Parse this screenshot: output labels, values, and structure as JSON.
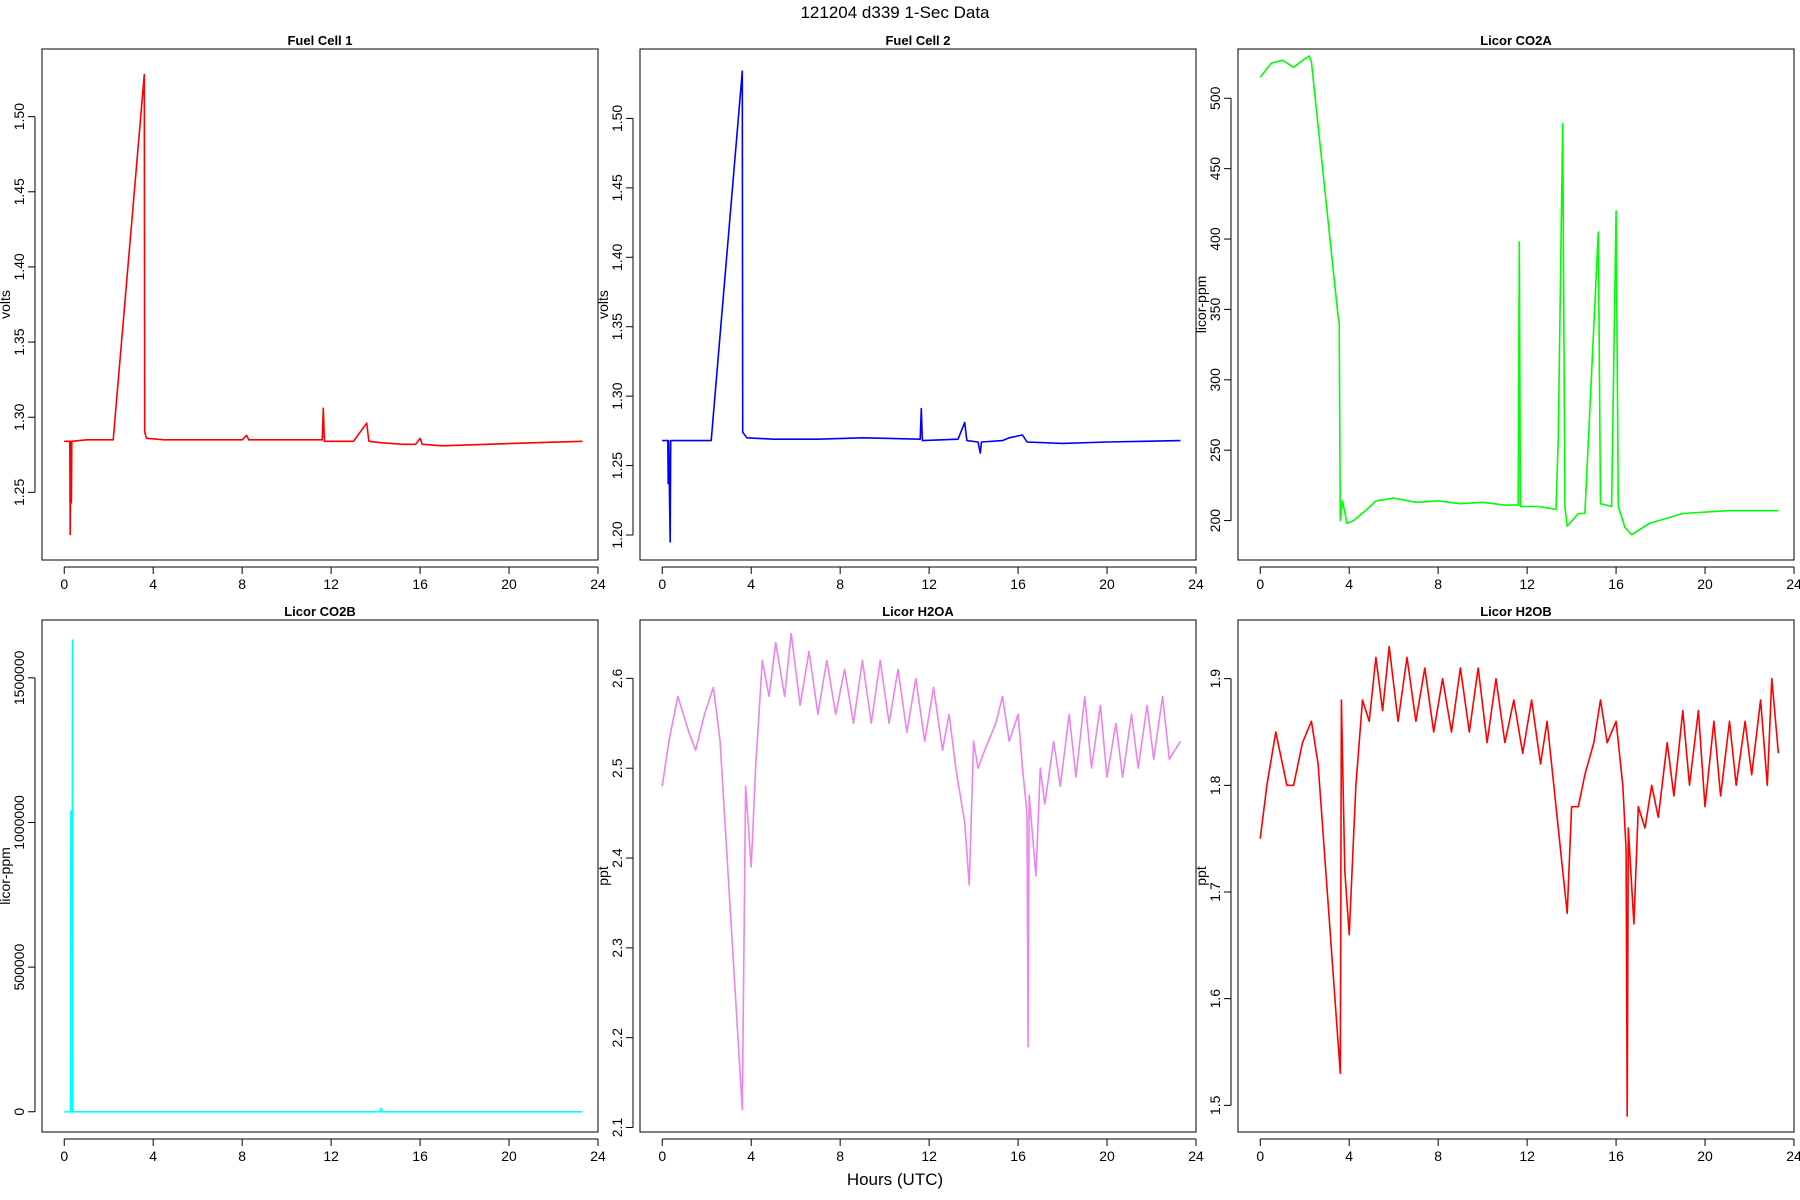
{
  "figure": {
    "title": "121204   d339   1-Sec Data",
    "xlabel": "Hours (UTC)"
  },
  "chart_data": [
    {
      "type": "line",
      "title": "Fuel Cell 1",
      "ylabel": "volts",
      "color": "#ff0000",
      "xlim": [
        -1,
        24
      ],
      "ylim": [
        1.205,
        1.545
      ],
      "xticks": [
        0,
        4,
        8,
        12,
        16,
        20,
        24
      ],
      "yticks": [
        1.25,
        1.3,
        1.35,
        1.4,
        1.45,
        1.5
      ],
      "ytick_labels": [
        "1.25",
        "1.30",
        "1.35",
        "1.40",
        "1.45",
        "1.50"
      ],
      "grid": false,
      "points": [
        [
          0,
          1.284
        ],
        [
          0.25,
          1.284
        ],
        [
          0.27,
          1.222
        ],
        [
          0.29,
          1.284
        ],
        [
          0.32,
          1.243
        ],
        [
          0.34,
          1.284
        ],
        [
          1.0,
          1.285
        ],
        [
          2.2,
          1.285
        ],
        [
          3.6,
          1.528
        ],
        [
          3.62,
          1.29
        ],
        [
          3.7,
          1.286
        ],
        [
          4.5,
          1.285
        ],
        [
          6,
          1.285
        ],
        [
          8,
          1.285
        ],
        [
          8.2,
          1.288
        ],
        [
          8.3,
          1.285
        ],
        [
          10,
          1.285
        ],
        [
          11.6,
          1.285
        ],
        [
          11.65,
          1.306
        ],
        [
          11.7,
          1.284
        ],
        [
          13.0,
          1.284
        ],
        [
          13.6,
          1.296
        ],
        [
          13.7,
          1.284
        ],
        [
          14.3,
          1.283
        ],
        [
          15.2,
          1.282
        ],
        [
          15.8,
          1.282
        ],
        [
          16.0,
          1.286
        ],
        [
          16.1,
          1.282
        ],
        [
          17.0,
          1.281
        ],
        [
          19,
          1.282
        ],
        [
          21,
          1.283
        ],
        [
          23.3,
          1.284
        ]
      ]
    },
    {
      "type": "line",
      "title": "Fuel Cell 2",
      "ylabel": "volts",
      "color": "#0000ff",
      "xlim": [
        -1,
        24
      ],
      "ylim": [
        1.182,
        1.55
      ],
      "xticks": [
        0,
        4,
        8,
        12,
        16,
        20,
        24
      ],
      "yticks": [
        1.2,
        1.25,
        1.3,
        1.35,
        1.4,
        1.45,
        1.5
      ],
      "ytick_labels": [
        "1.20",
        "1.25",
        "1.30",
        "1.35",
        "1.40",
        "1.45",
        "1.50"
      ],
      "grid": false,
      "points": [
        [
          0,
          1.268
        ],
        [
          0.25,
          1.268
        ],
        [
          0.27,
          1.237
        ],
        [
          0.29,
          1.268
        ],
        [
          0.36,
          1.195
        ],
        [
          0.38,
          1.268
        ],
        [
          1.0,
          1.268
        ],
        [
          2.2,
          1.268
        ],
        [
          3.6,
          1.534
        ],
        [
          3.62,
          1.274
        ],
        [
          3.8,
          1.27
        ],
        [
          5,
          1.269
        ],
        [
          7,
          1.269
        ],
        [
          9,
          1.27
        ],
        [
          11.6,
          1.269
        ],
        [
          11.65,
          1.291
        ],
        [
          11.7,
          1.268
        ],
        [
          13.3,
          1.269
        ],
        [
          13.6,
          1.281
        ],
        [
          13.7,
          1.268
        ],
        [
          14.2,
          1.267
        ],
        [
          14.3,
          1.259
        ],
        [
          14.35,
          1.267
        ],
        [
          15.3,
          1.268
        ],
        [
          15.6,
          1.27
        ],
        [
          16.2,
          1.272
        ],
        [
          16.4,
          1.267
        ],
        [
          18,
          1.266
        ],
        [
          20,
          1.267
        ],
        [
          23.3,
          1.268
        ]
      ]
    },
    {
      "type": "line",
      "title": "Licor CO2A",
      "ylabel": "licor-ppm",
      "color": "#00ff00",
      "xlim": [
        -1,
        24
      ],
      "ylim": [
        172,
        535
      ],
      "xticks": [
        0,
        4,
        8,
        12,
        16,
        20,
        24
      ],
      "yticks": [
        200,
        250,
        300,
        350,
        400,
        450,
        500
      ],
      "ytick_labels": [
        "200",
        "250",
        "300",
        "350",
        "400",
        "450",
        "500"
      ],
      "grid": false,
      "points": [
        [
          0,
          515
        ],
        [
          0.5,
          525
        ],
        [
          1.0,
          527
        ],
        [
          1.5,
          522
        ],
        [
          2.0,
          528
        ],
        [
          2.2,
          530
        ],
        [
          2.3,
          526
        ],
        [
          3.5,
          345
        ],
        [
          3.55,
          340
        ],
        [
          3.6,
          200
        ],
        [
          3.7,
          214
        ],
        [
          3.9,
          198
        ],
        [
          4.2,
          200
        ],
        [
          4.8,
          208
        ],
        [
          5.2,
          214
        ],
        [
          6,
          216
        ],
        [
          7,
          213
        ],
        [
          8,
          214
        ],
        [
          9,
          212
        ],
        [
          10,
          213
        ],
        [
          11,
          211
        ],
        [
          11.6,
          211
        ],
        [
          11.65,
          398
        ],
        [
          11.7,
          210
        ],
        [
          12.5,
          210
        ],
        [
          13.3,
          208
        ],
        [
          13.4,
          260
        ],
        [
          13.6,
          482
        ],
        [
          13.7,
          210
        ],
        [
          13.8,
          196
        ],
        [
          14.3,
          205
        ],
        [
          14.6,
          205
        ],
        [
          15.2,
          405
        ],
        [
          15.3,
          212
        ],
        [
          15.8,
          210
        ],
        [
          16.0,
          420
        ],
        [
          16.1,
          210
        ],
        [
          16.4,
          195
        ],
        [
          16.7,
          190
        ],
        [
          17.5,
          198
        ],
        [
          19,
          205
        ],
        [
          21,
          207
        ],
        [
          23.3,
          207
        ]
      ]
    },
    {
      "type": "line",
      "title": "Licor CO2B",
      "ylabel": "licor-ppm",
      "color": "#00ffff",
      "xlim": [
        -1,
        24
      ],
      "ylim": [
        -70000,
        1700000
      ],
      "xticks": [
        0,
        4,
        8,
        12,
        16,
        20,
        24
      ],
      "yticks": [
        0,
        500000,
        1000000,
        1500000
      ],
      "ytick_labels": [
        "0",
        "500000",
        "1000000",
        "1500000"
      ],
      "grid": false,
      "points": [
        [
          0,
          0
        ],
        [
          0.28,
          0
        ],
        [
          0.3,
          1040000
        ],
        [
          0.32,
          0
        ],
        [
          0.35,
          0
        ],
        [
          0.37,
          1630000
        ],
        [
          0.39,
          0
        ],
        [
          14.2,
          0
        ],
        [
          14.25,
          12000
        ],
        [
          14.3,
          0
        ],
        [
          23.3,
          0
        ]
      ]
    },
    {
      "type": "line",
      "title": "Licor H2OA",
      "ylabel": "ppt",
      "color": "#ee82ee",
      "xlim": [
        -1,
        24
      ],
      "ylim": [
        2.095,
        2.665
      ],
      "xticks": [
        0,
        4,
        8,
        12,
        16,
        20,
        24
      ],
      "yticks": [
        2.1,
        2.2,
        2.3,
        2.4,
        2.5,
        2.6
      ],
      "ytick_labels": [
        "2.1",
        "2.2",
        "2.3",
        "2.4",
        "2.5",
        "2.6"
      ],
      "grid": false,
      "points": [
        [
          0,
          2.48
        ],
        [
          0.3,
          2.53
        ],
        [
          0.7,
          2.58
        ],
        [
          1.2,
          2.54
        ],
        [
          1.5,
          2.52
        ],
        [
          1.9,
          2.56
        ],
        [
          2.3,
          2.59
        ],
        [
          2.6,
          2.53
        ],
        [
          3.6,
          2.12
        ],
        [
          3.75,
          2.48
        ],
        [
          4.0,
          2.39
        ],
        [
          4.2,
          2.5
        ],
        [
          4.5,
          2.62
        ],
        [
          4.8,
          2.58
        ],
        [
          5.1,
          2.64
        ],
        [
          5.5,
          2.58
        ],
        [
          5.8,
          2.65
        ],
        [
          6.2,
          2.57
        ],
        [
          6.6,
          2.63
        ],
        [
          7.0,
          2.56
        ],
        [
          7.4,
          2.62
        ],
        [
          7.8,
          2.56
        ],
        [
          8.2,
          2.61
        ],
        [
          8.6,
          2.55
        ],
        [
          9.0,
          2.62
        ],
        [
          9.4,
          2.55
        ],
        [
          9.8,
          2.62
        ],
        [
          10.2,
          2.55
        ],
        [
          10.6,
          2.61
        ],
        [
          11.0,
          2.54
        ],
        [
          11.4,
          2.6
        ],
        [
          11.8,
          2.53
        ],
        [
          12.2,
          2.59
        ],
        [
          12.6,
          2.52
        ],
        [
          12.9,
          2.56
        ],
        [
          13.2,
          2.5
        ],
        [
          13.6,
          2.44
        ],
        [
          13.8,
          2.37
        ],
        [
          14.0,
          2.53
        ],
        [
          14.2,
          2.5
        ],
        [
          14.5,
          2.52
        ],
        [
          15.0,
          2.55
        ],
        [
          15.3,
          2.58
        ],
        [
          15.6,
          2.53
        ],
        [
          16.0,
          2.56
        ],
        [
          16.2,
          2.5
        ],
        [
          16.4,
          2.45
        ],
        [
          16.45,
          2.19
        ],
        [
          16.5,
          2.47
        ],
        [
          16.8,
          2.38
        ],
        [
          17.0,
          2.5
        ],
        [
          17.2,
          2.46
        ],
        [
          17.6,
          2.53
        ],
        [
          17.9,
          2.48
        ],
        [
          18.3,
          2.56
        ],
        [
          18.6,
          2.49
        ],
        [
          19.0,
          2.58
        ],
        [
          19.3,
          2.5
        ],
        [
          19.7,
          2.57
        ],
        [
          20.0,
          2.49
        ],
        [
          20.4,
          2.55
        ],
        [
          20.7,
          2.49
        ],
        [
          21.1,
          2.56
        ],
        [
          21.4,
          2.5
        ],
        [
          21.8,
          2.57
        ],
        [
          22.1,
          2.51
        ],
        [
          22.5,
          2.58
        ],
        [
          22.8,
          2.51
        ],
        [
          23.3,
          2.53
        ]
      ]
    },
    {
      "type": "line",
      "title": "Licor H2OB",
      "ylabel": "ppt",
      "color": "#ff0000",
      "xlim": [
        -1,
        24
      ],
      "ylim": [
        1.475,
        1.955
      ],
      "xticks": [
        0,
        4,
        8,
        12,
        16,
        20,
        24
      ],
      "yticks": [
        1.5,
        1.6,
        1.7,
        1.8,
        1.9
      ],
      "ytick_labels": [
        "1.5",
        "1.6",
        "1.7",
        "1.8",
        "1.9"
      ],
      "grid": false,
      "points": [
        [
          0,
          1.75
        ],
        [
          0.3,
          1.8
        ],
        [
          0.7,
          1.85
        ],
        [
          1.2,
          1.8
        ],
        [
          1.5,
          1.8
        ],
        [
          1.9,
          1.84
        ],
        [
          2.3,
          1.86
        ],
        [
          2.6,
          1.82
        ],
        [
          3.6,
          1.53
        ],
        [
          3.65,
          1.88
        ],
        [
          3.8,
          1.72
        ],
        [
          4.0,
          1.66
        ],
        [
          4.3,
          1.8
        ],
        [
          4.6,
          1.88
        ],
        [
          4.9,
          1.86
        ],
        [
          5.2,
          1.92
        ],
        [
          5.5,
          1.87
        ],
        [
          5.8,
          1.93
        ],
        [
          6.2,
          1.86
        ],
        [
          6.6,
          1.92
        ],
        [
          7.0,
          1.86
        ],
        [
          7.4,
          1.91
        ],
        [
          7.8,
          1.85
        ],
        [
          8.2,
          1.9
        ],
        [
          8.6,
          1.85
        ],
        [
          9.0,
          1.91
        ],
        [
          9.4,
          1.85
        ],
        [
          9.8,
          1.91
        ],
        [
          10.2,
          1.84
        ],
        [
          10.6,
          1.9
        ],
        [
          11.0,
          1.84
        ],
        [
          11.4,
          1.88
        ],
        [
          11.8,
          1.83
        ],
        [
          12.2,
          1.88
        ],
        [
          12.6,
          1.82
        ],
        [
          12.9,
          1.86
        ],
        [
          13.2,
          1.8
        ],
        [
          13.6,
          1.72
        ],
        [
          13.8,
          1.68
        ],
        [
          14.0,
          1.78
        ],
        [
          14.3,
          1.78
        ],
        [
          14.6,
          1.81
        ],
        [
          15.0,
          1.84
        ],
        [
          15.3,
          1.88
        ],
        [
          15.6,
          1.84
        ],
        [
          16.0,
          1.86
        ],
        [
          16.3,
          1.8
        ],
        [
          16.45,
          1.74
        ],
        [
          16.5,
          1.49
        ],
        [
          16.55,
          1.76
        ],
        [
          16.8,
          1.67
        ],
        [
          17.0,
          1.78
        ],
        [
          17.3,
          1.76
        ],
        [
          17.6,
          1.8
        ],
        [
          17.9,
          1.77
        ],
        [
          18.3,
          1.84
        ],
        [
          18.6,
          1.79
        ],
        [
          19.0,
          1.87
        ],
        [
          19.3,
          1.8
        ],
        [
          19.7,
          1.87
        ],
        [
          20.0,
          1.78
        ],
        [
          20.4,
          1.86
        ],
        [
          20.7,
          1.79
        ],
        [
          21.1,
          1.86
        ],
        [
          21.4,
          1.8
        ],
        [
          21.8,
          1.86
        ],
        [
          22.1,
          1.81
        ],
        [
          22.5,
          1.88
        ],
        [
          22.8,
          1.8
        ],
        [
          23.0,
          1.9
        ],
        [
          23.3,
          1.83
        ]
      ]
    }
  ]
}
